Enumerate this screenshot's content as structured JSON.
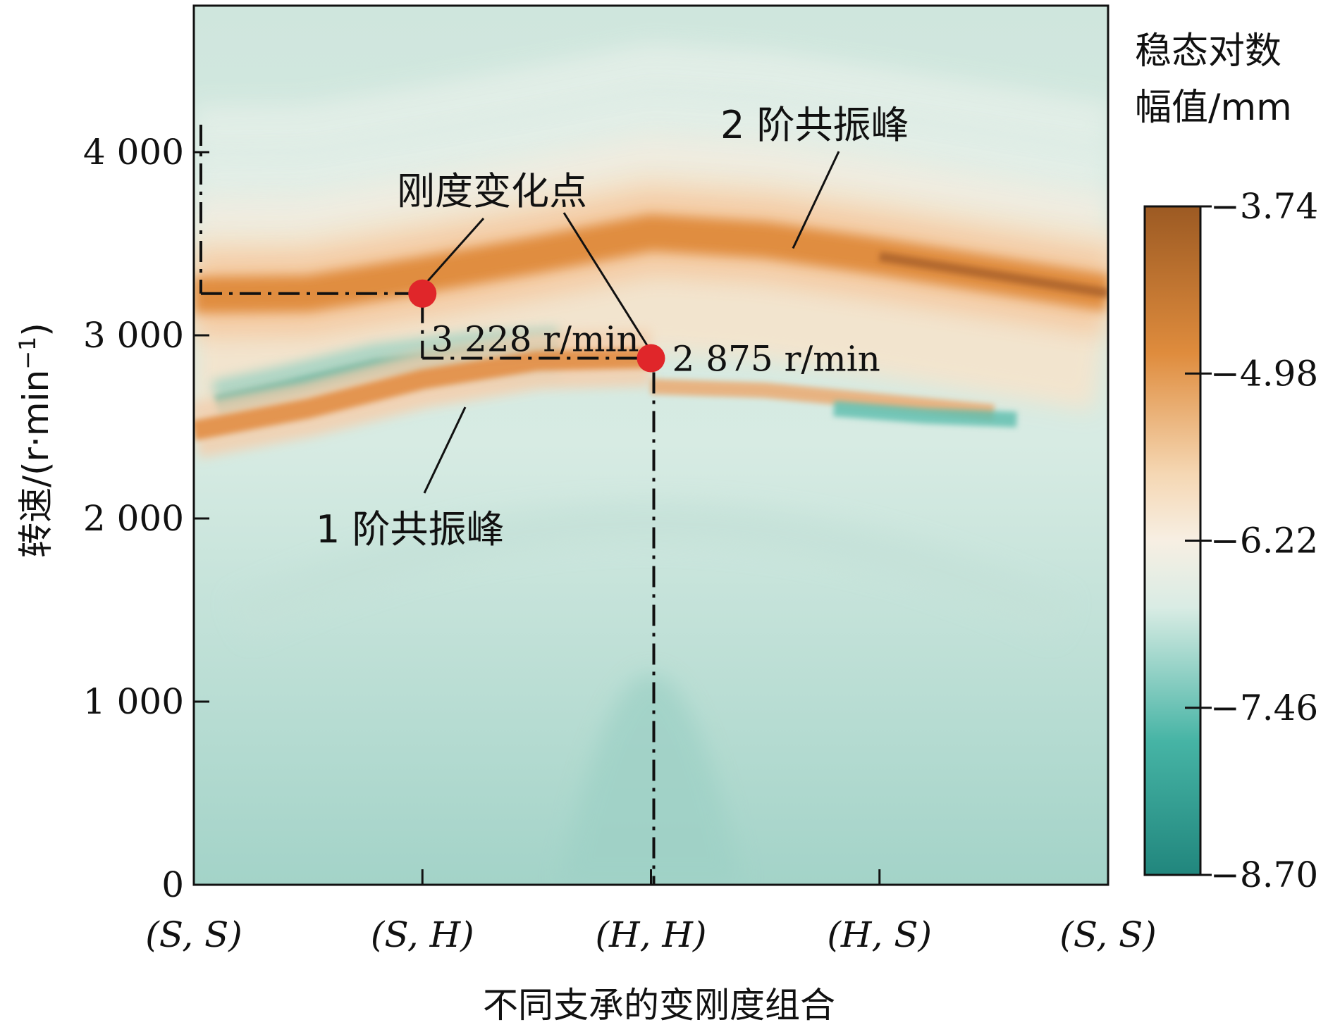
{
  "chart_data": {
    "type": "heatmap",
    "xlabel": "不同支承的变刚度组合",
    "ylabel": "转速/(r·min",
    "ylabel_exp": "−1",
    "ylabel_close": ")",
    "x_categories": [
      "(S, S)",
      "(S, H)",
      "(H, H)",
      "(H, S)",
      "(S, S)"
    ],
    "y_ticks": [
      {
        "value": 0,
        "label": "0"
      },
      {
        "value": 1000,
        "label": "1 000"
      },
      {
        "value": 2000,
        "label": "2 000"
      },
      {
        "value": 3000,
        "label": "3 000"
      },
      {
        "value": 4000,
        "label": "4 000"
      }
    ],
    "ylim": [
      0,
      4800
    ],
    "xlim": [
      0,
      4
    ],
    "colorbar": {
      "title_line1": "稳态对数",
      "title_line2": "幅值/mm",
      "ticks": [
        "−3.74",
        "−4.98",
        "−6.22",
        "−7.46",
        "−8.70"
      ],
      "tick_values": [
        -3.74,
        -4.98,
        -6.22,
        -7.46,
        -8.7
      ],
      "range": [
        -8.7,
        -3.74
      ],
      "colors": [
        "#9c5a23",
        "#e08a3a",
        "#f7e6cf",
        "#e3efe8",
        "#4fb7a8",
        "#238e83"
      ]
    },
    "resonance_ridges": [
      {
        "name": "1 阶共振峰",
        "x": [
          0,
          0.5,
          1,
          1.5,
          2
        ],
        "y": [
          2480,
          2600,
          2760,
          2860,
          2875
        ]
      },
      {
        "name": "2 阶共振峰",
        "x": [
          0,
          0.5,
          1,
          1.5,
          2,
          2.5,
          3,
          3.5,
          4
        ],
        "y": [
          3220,
          3228,
          3330,
          3440,
          3560,
          3520,
          3430,
          3330,
          3230
        ]
      }
    ],
    "stiffness_change_points": [
      {
        "x": 1,
        "y": 3228,
        "label": "3 228 r/min"
      },
      {
        "x": 2,
        "y": 2875,
        "label": "2 875 r/min"
      }
    ],
    "annotations": {
      "stiffness_point_label": "刚度变化点",
      "first_peak_label": "1 阶共振峰",
      "second_peak_label": "2 阶共振峰"
    }
  }
}
